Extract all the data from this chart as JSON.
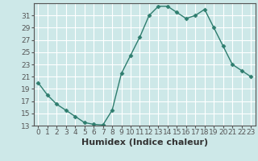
{
  "x": [
    0,
    1,
    2,
    3,
    4,
    5,
    6,
    7,
    8,
    9,
    10,
    11,
    12,
    13,
    14,
    15,
    16,
    17,
    18,
    19,
    20,
    21,
    22,
    23
  ],
  "y": [
    20,
    18,
    16.5,
    15.5,
    14.5,
    13.5,
    13.2,
    13.1,
    15.5,
    21.5,
    24.5,
    27.5,
    31,
    32.5,
    32.5,
    31.5,
    30.5,
    31,
    32,
    29,
    26,
    23,
    22,
    21
  ],
  "line_color": "#2e7d6e",
  "marker": "D",
  "markersize": 2.5,
  "linewidth": 1.0,
  "xlabel": "Humidex (Indice chaleur)",
  "xlim": [
    -0.5,
    23.5
  ],
  "ylim": [
    13,
    33
  ],
  "yticks": [
    13,
    15,
    17,
    19,
    21,
    23,
    25,
    27,
    29,
    31
  ],
  "xticks": [
    0,
    1,
    2,
    3,
    4,
    5,
    6,
    7,
    8,
    9,
    10,
    11,
    12,
    13,
    14,
    15,
    16,
    17,
    18,
    19,
    20,
    21,
    22,
    23
  ],
  "bg_color": "#cde8e8",
  "grid_color": "#ffffff",
  "tick_fontsize": 6.5,
  "xlabel_fontsize": 8,
  "axis_color": "#555555"
}
